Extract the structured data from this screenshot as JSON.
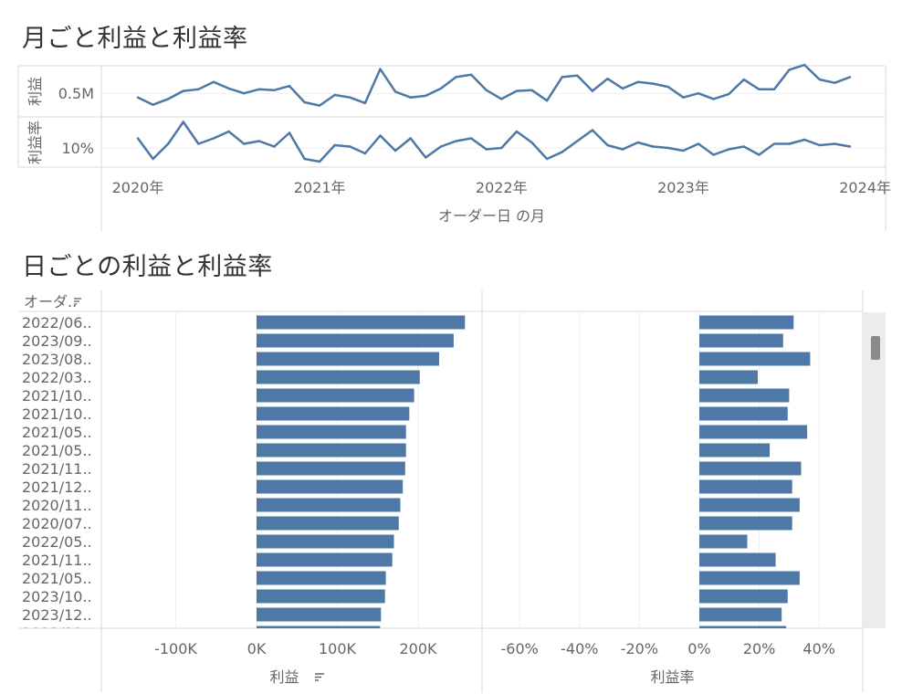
{
  "top": {
    "title": "月ごと利益と利益率",
    "row_labels": [
      "利益",
      "利益率"
    ],
    "xlabel": "オーダー日 の月"
  },
  "bottom": {
    "title": "日ごとの利益と利益率",
    "col_header": "オーダ..",
    "sort_icon": "sort-descending-icon",
    "scroll": {
      "visible_fraction": 0.05
    }
  },
  "chart_data": [
    {
      "type": "line",
      "title": "月ごと利益と利益率",
      "xlabel": "オーダー日 の月",
      "x_ticks": [
        "2020年",
        "2021年",
        "2022年",
        "2023年",
        "2024年"
      ],
      "x_range": [
        0,
        48
      ],
      "series": [
        {
          "name": "利益",
          "y_ticks": [
            {
              "value": 500000,
              "label": "0.5M"
            }
          ],
          "ylim": [
            210000,
            840000
          ],
          "values": [
            450000,
            360000,
            430000,
            530000,
            550000,
            640000,
            560000,
            500000,
            550000,
            540000,
            590000,
            390000,
            350000,
            480000,
            450000,
            380000,
            800000,
            520000,
            450000,
            470000,
            560000,
            700000,
            730000,
            540000,
            430000,
            530000,
            540000,
            410000,
            700000,
            720000,
            530000,
            680000,
            560000,
            640000,
            620000,
            580000,
            450000,
            500000,
            430000,
            490000,
            670000,
            550000,
            550000,
            790000,
            850000,
            670000,
            630000,
            700000
          ]
        },
        {
          "name": "利益率",
          "y_ticks": [
            {
              "value": 10,
              "label": "10%"
            }
          ],
          "ylim": [
            3,
            21
          ],
          "values": [
            13.5,
            6.0,
            11.5,
            19.5,
            11.5,
            13.5,
            16.0,
            11.5,
            12.5,
            10.5,
            15.5,
            6.0,
            5.0,
            11.0,
            10.5,
            8.0,
            14.5,
            9.0,
            13.5,
            6.5,
            10.5,
            12.5,
            13.5,
            9.5,
            10.0,
            16.0,
            12.0,
            6.0,
            8.5,
            12.5,
            16.5,
            11.0,
            9.5,
            12.0,
            10.5,
            10.0,
            9.0,
            11.5,
            7.5,
            9.5,
            10.5,
            7.5,
            11.5,
            11.5,
            13.0,
            11.0,
            11.5,
            10.5
          ]
        }
      ]
    },
    {
      "type": "bar",
      "title": "日ごとの利益と利益率",
      "categories": [
        "2022/06..",
        "2023/09..",
        "2023/08..",
        "2022/03..",
        "2021/10..",
        "2021/10..",
        "2021/05..",
        "2021/05..",
        "2021/11..",
        "2021/12..",
        "2020/11..",
        "2020/07..",
        "2022/05..",
        "2021/11..",
        "2021/05..",
        "2023/10..",
        "2023/12..",
        "2023/12.."
      ],
      "series": [
        {
          "name": "利益",
          "xlabel": "利益",
          "xlim": [
            -165000,
            300000
          ],
          "x_ticks": [
            {
              "value": -100000,
              "label": "-100K"
            },
            {
              "value": 0,
              "label": "0K"
            },
            {
              "value": 100000,
              "label": "100K"
            },
            {
              "value": 200000,
              "label": "200K"
            }
          ],
          "values": [
            258000,
            244000,
            226000,
            202000,
            195000,
            189000,
            185000,
            185000,
            184000,
            181000,
            178000,
            176000,
            170000,
            168000,
            160000,
            159000,
            154000,
            153000
          ]
        },
        {
          "name": "利益率",
          "xlabel": "利益率",
          "xlim": [
            -72,
            54
          ],
          "x_ticks": [
            {
              "value": -60,
              "label": "-60%"
            },
            {
              "value": -40,
              "label": "-40%"
            },
            {
              "value": -20,
              "label": "-20%"
            },
            {
              "value": 0,
              "label": "0%"
            },
            {
              "value": 20,
              "label": "20%"
            },
            {
              "value": 40,
              "label": "40%"
            }
          ],
          "values": [
            31.5,
            28.0,
            37.0,
            19.5,
            30.0,
            29.5,
            36.0,
            23.5,
            34.0,
            31.0,
            33.5,
            31.0,
            16.0,
            25.5,
            33.5,
            29.5,
            27.5,
            29.0
          ]
        }
      ]
    }
  ],
  "colors": {
    "mark": "#4e79a7",
    "grid": "#efefef",
    "axis": "#d8d8d8",
    "text": "#666666"
  }
}
